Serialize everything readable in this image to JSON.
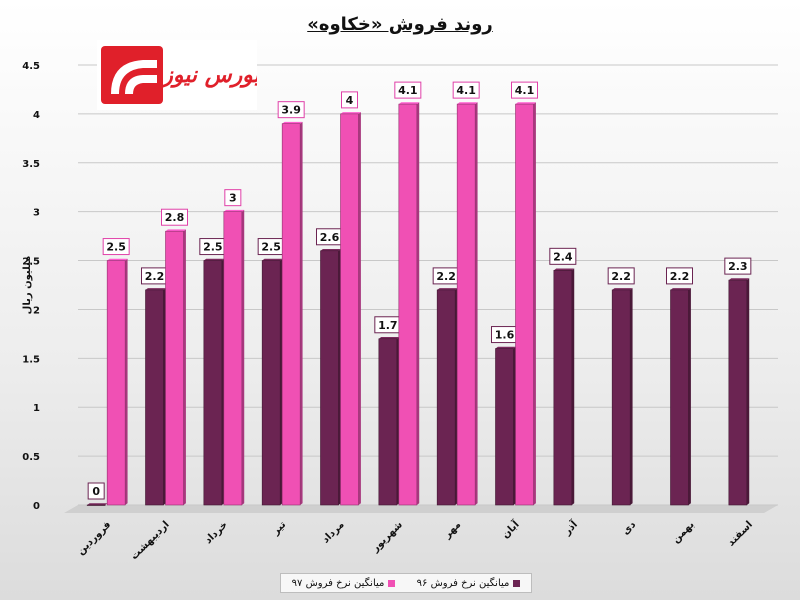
{
  "chart_data": {
    "type": "bar",
    "title": "روند فروش «خکاوه»",
    "ylabel": "میلیون ریال",
    "xlabel": "",
    "ylim": [
      0,
      4.5
    ],
    "yticks": [
      "0",
      "0.5",
      "1",
      "1.5",
      "2",
      "2.5",
      "3",
      "3.5",
      "4",
      "4.5"
    ],
    "grid": true,
    "legend_position": "bottom",
    "categories": [
      "فروردین",
      "اردیبهشت",
      "خرداد",
      "تیر",
      "مرداد",
      "شهریور",
      "مهر",
      "آبان",
      "آذر",
      "دی",
      "بهمن",
      "اسفند"
    ],
    "series": [
      {
        "name": "میانگین نرخ فروش ۹۶",
        "color": "#6b2452",
        "values": [
          0,
          2.2,
          2.5,
          2.5,
          2.6,
          1.7,
          2.2,
          1.6,
          2.4,
          2.2,
          2.2,
          2.3
        ],
        "labels": [
          "0",
          "2.2",
          "2.5",
          "2.5",
          "2.6",
          "1.7",
          "2.2",
          "1.6",
          "2.4",
          "2.2",
          "2.2",
          "2.3"
        ]
      },
      {
        "name": "میانگین نرخ فروش ۹۷",
        "color": "#f050b4",
        "values": [
          2.5,
          2.8,
          3,
          3.9,
          4,
          4.1,
          4.1,
          4.1,
          null,
          null,
          null,
          null
        ],
        "labels": [
          "2.5",
          "2.8",
          "3",
          "3.9",
          "4",
          "4.1",
          "4.1",
          "4.1",
          "",
          "",
          "",
          ""
        ]
      }
    ]
  },
  "logo": {
    "text": "بورس نیوز",
    "color": "#e0202a"
  }
}
